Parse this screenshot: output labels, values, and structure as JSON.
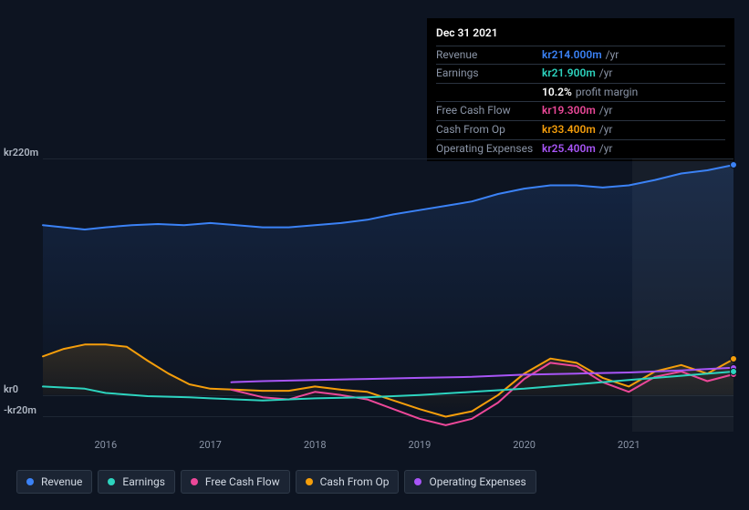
{
  "tooltip": {
    "date": "Dec 31 2021",
    "rows": [
      {
        "label": "Revenue",
        "value": "kr214.000m",
        "unit": "/yr",
        "color": "#3b82f6"
      },
      {
        "label": "Earnings",
        "value": "kr21.900m",
        "unit": "/yr",
        "color": "#2dd4bf"
      },
      {
        "label": "",
        "value": "10.2%",
        "unit": "profit margin",
        "color": "#ffffff"
      },
      {
        "label": "Free Cash Flow",
        "value": "kr19.300m",
        "unit": "/yr",
        "color": "#ec4899"
      },
      {
        "label": "Cash From Op",
        "value": "kr33.400m",
        "unit": "/yr",
        "color": "#f59e0b"
      },
      {
        "label": "Operating Expenses",
        "value": "kr25.400m",
        "unit": "/yr",
        "color": "#a855f7"
      }
    ]
  },
  "chart": {
    "type": "area-line",
    "background_color": "#0d1421",
    "grid_color": "#1d2633",
    "text_color": "#b0b8c4",
    "x_range": [
      2015.4,
      2022.0
    ],
    "y_range_m": [
      -34,
      220
    ],
    "y_ticks": [
      {
        "v": 220,
        "label": "kr220m"
      },
      {
        "v": 0,
        "label": "kr0"
      },
      {
        "v": -20,
        "label": "-kr20m"
      }
    ],
    "x_ticks": [
      2016,
      2017,
      2018,
      2019,
      2020,
      2021
    ],
    "highlight_from_x": 2021.03,
    "series": [
      {
        "name": "Revenue",
        "color": "#3b82f6",
        "stroke_width": 2,
        "fill_opacity": 0.16,
        "data": [
          [
            2015.4,
            158
          ],
          [
            2015.6,
            156
          ],
          [
            2015.8,
            154
          ],
          [
            2016.0,
            156
          ],
          [
            2016.25,
            158
          ],
          [
            2016.5,
            159
          ],
          [
            2016.75,
            158
          ],
          [
            2017.0,
            160
          ],
          [
            2017.25,
            158
          ],
          [
            2017.5,
            156
          ],
          [
            2017.75,
            156
          ],
          [
            2018.0,
            158
          ],
          [
            2018.25,
            160
          ],
          [
            2018.5,
            163
          ],
          [
            2018.75,
            168
          ],
          [
            2019.0,
            172
          ],
          [
            2019.25,
            176
          ],
          [
            2019.5,
            180
          ],
          [
            2019.75,
            187
          ],
          [
            2020.0,
            192
          ],
          [
            2020.25,
            195
          ],
          [
            2020.5,
            195
          ],
          [
            2020.75,
            193
          ],
          [
            2021.0,
            195
          ],
          [
            2021.25,
            200
          ],
          [
            2021.5,
            206
          ],
          [
            2021.75,
            209
          ],
          [
            2022.0,
            214
          ]
        ]
      },
      {
        "name": "Cash From Op",
        "color": "#f59e0b",
        "stroke_width": 2,
        "fill_opacity": 0.14,
        "data": [
          [
            2015.4,
            36
          ],
          [
            2015.6,
            43
          ],
          [
            2015.8,
            47
          ],
          [
            2016.0,
            47
          ],
          [
            2016.2,
            45
          ],
          [
            2016.4,
            32
          ],
          [
            2016.6,
            20
          ],
          [
            2016.8,
            10
          ],
          [
            2017.0,
            6
          ],
          [
            2017.25,
            5
          ],
          [
            2017.5,
            4
          ],
          [
            2017.75,
            4
          ],
          [
            2018.0,
            8
          ],
          [
            2018.25,
            5
          ],
          [
            2018.5,
            3
          ],
          [
            2018.75,
            -5
          ],
          [
            2019.0,
            -13
          ],
          [
            2019.25,
            -20
          ],
          [
            2019.5,
            -15
          ],
          [
            2019.75,
            0
          ],
          [
            2020.0,
            20
          ],
          [
            2020.25,
            34
          ],
          [
            2020.5,
            30
          ],
          [
            2020.75,
            16
          ],
          [
            2021.0,
            8
          ],
          [
            2021.25,
            22
          ],
          [
            2021.5,
            28
          ],
          [
            2021.75,
            20
          ],
          [
            2022.0,
            33.4
          ]
        ]
      },
      {
        "name": "Free Cash Flow",
        "color": "#ec4899",
        "stroke_width": 2,
        "fill_opacity": 0.0,
        "data": [
          [
            2017.2,
            5
          ],
          [
            2017.5,
            -2
          ],
          [
            2017.75,
            -4
          ],
          [
            2018.0,
            3
          ],
          [
            2018.25,
            0
          ],
          [
            2018.5,
            -4
          ],
          [
            2018.75,
            -13
          ],
          [
            2019.0,
            -22
          ],
          [
            2019.25,
            -28
          ],
          [
            2019.5,
            -22
          ],
          [
            2019.75,
            -7
          ],
          [
            2020.0,
            15
          ],
          [
            2020.25,
            30
          ],
          [
            2020.5,
            27
          ],
          [
            2020.75,
            12
          ],
          [
            2021.0,
            3
          ],
          [
            2021.25,
            17
          ],
          [
            2021.5,
            22
          ],
          [
            2021.75,
            13
          ],
          [
            2022.0,
            19.3
          ]
        ]
      },
      {
        "name": "Operating Expenses",
        "color": "#a855f7",
        "stroke_width": 2,
        "fill_opacity": 0.0,
        "data": [
          [
            2017.2,
            12
          ],
          [
            2017.5,
            13
          ],
          [
            2018.0,
            14
          ],
          [
            2018.5,
            15
          ],
          [
            2019.0,
            16
          ],
          [
            2019.5,
            17
          ],
          [
            2020.0,
            19
          ],
          [
            2020.5,
            20
          ],
          [
            2021.0,
            21
          ],
          [
            2021.5,
            23
          ],
          [
            2022.0,
            25.4
          ]
        ]
      },
      {
        "name": "Earnings",
        "color": "#2dd4bf",
        "stroke_width": 2,
        "fill_opacity": 0.0,
        "data": [
          [
            2015.4,
            8
          ],
          [
            2015.8,
            6
          ],
          [
            2016.0,
            2
          ],
          [
            2016.4,
            -1
          ],
          [
            2016.8,
            -2
          ],
          [
            2017.0,
            -3
          ],
          [
            2017.5,
            -5
          ],
          [
            2018.0,
            -3
          ],
          [
            2018.5,
            -2
          ],
          [
            2019.0,
            0
          ],
          [
            2019.5,
            3
          ],
          [
            2020.0,
            6
          ],
          [
            2020.5,
            10
          ],
          [
            2021.0,
            14
          ],
          [
            2021.5,
            18
          ],
          [
            2022.0,
            21.9
          ]
        ]
      }
    ],
    "legend": [
      {
        "label": "Revenue",
        "color": "#3b82f6"
      },
      {
        "label": "Earnings",
        "color": "#2dd4bf"
      },
      {
        "label": "Free Cash Flow",
        "color": "#ec4899"
      },
      {
        "label": "Cash From Op",
        "color": "#f59e0b"
      },
      {
        "label": "Operating Expenses",
        "color": "#a855f7"
      }
    ]
  }
}
